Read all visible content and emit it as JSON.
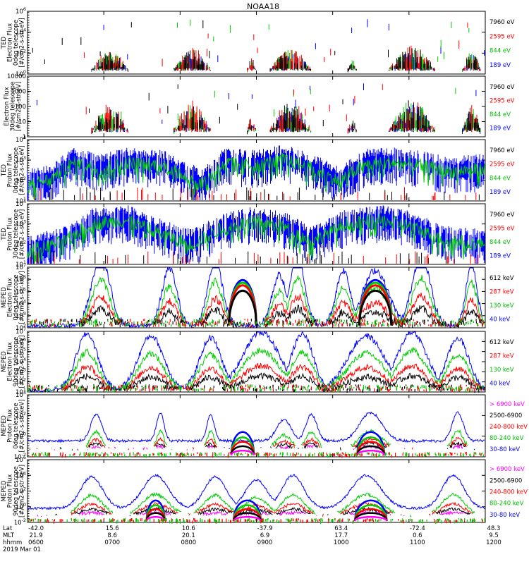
{
  "chart_data": [
    {
      "type": "line",
      "title": "NOAA18",
      "ylabel": [
        "TED",
        "Electron Flux",
        "0deg telescope",
        "[#/cm2-s-str-eV]"
      ],
      "yscale": "log",
      "ylim": [
        1,
        1000000
      ],
      "y_ticks": [
        "10^0",
        "10^2",
        "10^4",
        "10^6"
      ],
      "series": [
        {
          "name": "7960 eV",
          "color": "#000000"
        },
        {
          "name": "2595 eV",
          "color": "#ff0000"
        },
        {
          "name": "844 eV",
          "color": "#00cc00"
        },
        {
          "name": "189 eV",
          "color": "#0000ff"
        }
      ],
      "bursts": [
        [
          0.14,
          0.22
        ],
        [
          0.32,
          0.4
        ],
        [
          0.48,
          0.5
        ],
        [
          0.53,
          0.62
        ],
        [
          0.7,
          0.72
        ],
        [
          0.79,
          0.89
        ],
        [
          0.95,
          0.99
        ]
      ],
      "peak_log": [
        2.2,
        2.4,
        1.6,
        2.4,
        1.4,
        2.6,
        2.2
      ]
    },
    {
      "type": "line",
      "ylabel": [
        "Electron Flux",
        "30deg telescope",
        "[#/cm2-s-str-eV]"
      ],
      "yscale": "log",
      "ylim": [
        1,
        10000
      ],
      "y_ticks": [
        "1",
        "10",
        "100",
        "1000",
        "10000"
      ],
      "series": [
        {
          "name": "7960 eV",
          "color": "#000000"
        },
        {
          "name": "2595 eV",
          "color": "#ff0000"
        },
        {
          "name": "844 eV",
          "color": "#00cc00"
        },
        {
          "name": "189 eV",
          "color": "#0000ff"
        }
      ],
      "bursts": [
        [
          0.14,
          0.22
        ],
        [
          0.32,
          0.4
        ],
        [
          0.48,
          0.5
        ],
        [
          0.53,
          0.62
        ],
        [
          0.7,
          0.72
        ],
        [
          0.79,
          0.89
        ],
        [
          0.95,
          0.99
        ]
      ],
      "peak_log": [
        2.0,
        2.2,
        1.4,
        2.3,
        1.2,
        2.4,
        2.0
      ]
    },
    {
      "type": "line",
      "ylabel": [
        "TED",
        "Proton Flux",
        "0deg telescope",
        "[#/cm2-s-str-eV]"
      ],
      "yscale": "log",
      "ylim": [
        1,
        10000
      ],
      "y_ticks": [
        "10^1",
        "10^2",
        "10^3",
        "10^4"
      ],
      "series": [
        {
          "name": "7960 eV",
          "color": "#000000"
        },
        {
          "name": "2595 eV",
          "color": "#ff0000"
        },
        {
          "name": "844 eV",
          "color": "#00cc00"
        },
        {
          "name": "189 eV",
          "color": "#0000ff"
        }
      ],
      "envelope": [
        [
          0.0,
          1.2
        ],
        [
          0.05,
          1.5
        ],
        [
          0.1,
          2.6
        ],
        [
          0.16,
          2.2
        ],
        [
          0.22,
          2.6
        ],
        [
          0.3,
          2.4
        ],
        [
          0.34,
          1.8
        ],
        [
          0.38,
          1.2
        ],
        [
          0.43,
          2.6
        ],
        [
          0.5,
          2.4
        ],
        [
          0.56,
          2.8
        ],
        [
          0.62,
          2.2
        ],
        [
          0.68,
          1.4
        ],
        [
          0.74,
          2.5
        ],
        [
          0.8,
          2.6
        ],
        [
          0.86,
          2.4
        ],
        [
          0.92,
          2.0
        ],
        [
          1.0,
          2.2
        ]
      ]
    },
    {
      "type": "line",
      "ylabel": [
        "TED",
        "Proton Flux",
        "30deg telescope",
        "[#/cm2-s-str-eV]"
      ],
      "yscale": "log",
      "ylim": [
        1,
        10000
      ],
      "y_ticks": [
        "10^1",
        "10^2",
        "10^3",
        "10^4"
      ],
      "series": [
        {
          "name": "7960 eV",
          "color": "#000000"
        },
        {
          "name": "2595 eV",
          "color": "#ff0000"
        },
        {
          "name": "844 eV",
          "color": "#00cc00"
        },
        {
          "name": "189 eV",
          "color": "#0000ff"
        }
      ],
      "envelope": [
        [
          0.0,
          1.0
        ],
        [
          0.08,
          1.6
        ],
        [
          0.14,
          2.8
        ],
        [
          0.22,
          3.0
        ],
        [
          0.3,
          2.0
        ],
        [
          0.36,
          1.4
        ],
        [
          0.42,
          2.4
        ],
        [
          0.5,
          3.0
        ],
        [
          0.56,
          2.6
        ],
        [
          0.62,
          1.6
        ],
        [
          0.7,
          2.8
        ],
        [
          0.78,
          3.0
        ],
        [
          0.84,
          2.6
        ],
        [
          0.9,
          1.8
        ],
        [
          1.0,
          1.4
        ]
      ]
    },
    {
      "type": "line",
      "ylabel": [
        "MEPED",
        "Electron Flux",
        "0deg telescope",
        "[#/cm2-s-str-keV]"
      ],
      "yscale": "log",
      "ylim": [
        100,
        10000000
      ],
      "y_ticks": [
        "10^2",
        "10^3",
        "10^4",
        "10^5",
        "10^6",
        "10^7"
      ],
      "series": [
        {
          "name": "612 keV",
          "color": "#000000"
        },
        {
          "name": "287 keV",
          "color": "#ff0000"
        },
        {
          "name": "130 keV",
          "color": "#00cc00"
        },
        {
          "name": "40 keV",
          "color": "#0000ff"
        }
      ],
      "humps": [
        [
          0.16,
          0.025,
          5.6
        ],
        [
          0.31,
          0.02,
          4.8
        ],
        [
          0.41,
          0.02,
          5.4
        ],
        [
          0.55,
          0.02,
          4.2
        ],
        [
          0.59,
          0.02,
          5.8
        ],
        [
          0.69,
          0.02,
          4.6
        ],
        [
          0.76,
          0.035,
          4.6
        ],
        [
          0.86,
          0.025,
          5.8
        ],
        [
          0.97,
          0.015,
          5.2
        ]
      ],
      "rad_belt": [
        [
          0.47,
          0.03,
          3.6
        ],
        [
          0.76,
          0.035,
          4.6
        ]
      ]
    },
    {
      "type": "line",
      "ylabel": [
        "MEPED",
        "Electron Flux",
        "90deg telescope",
        "[#/cm2-s-str-keV]"
      ],
      "yscale": "log",
      "ylim": [
        10,
        10000000
      ],
      "y_ticks": [
        "10^1",
        "10^2",
        "10^3",
        "10^4",
        "10^5",
        "10^6",
        "10^7"
      ],
      "series": [
        {
          "name": "612 keV",
          "color": "#000000"
        },
        {
          "name": "287 keV",
          "color": "#ff0000"
        },
        {
          "name": "130 keV",
          "color": "#00cc00"
        },
        {
          "name": "40 keV",
          "color": "#0000ff"
        }
      ],
      "humps": [
        [
          0.13,
          0.03,
          5.6
        ],
        [
          0.27,
          0.035,
          5.4
        ],
        [
          0.4,
          0.03,
          5.2
        ],
        [
          0.51,
          0.05,
          5.8
        ],
        [
          0.6,
          0.03,
          5.6
        ],
        [
          0.74,
          0.05,
          5.4
        ],
        [
          0.84,
          0.04,
          5.8
        ],
        [
          0.94,
          0.03,
          5.2
        ]
      ]
    },
    {
      "type": "line",
      "ylabel": [
        "MEPED",
        "Proton Flux",
        "0deg telescope",
        "[#/cm2-s-str-keV]"
      ],
      "yscale": "log",
      "ylim": [
        0.01,
        100000
      ],
      "y_ticks": [
        "10^-2",
        "10^0",
        "10^2",
        "10^4"
      ],
      "series": [
        {
          "name": "> 6900 keV",
          "color": "#ff00ff"
        },
        {
          "name": "2500-6900",
          "color": "#000000"
        },
        {
          "name": "240-800 keV",
          "color": "#ff0000"
        },
        {
          "name": "80-240 keV",
          "color": "#00cc00"
        },
        {
          "name": "30-80 keV",
          "color": "#0000ff"
        }
      ],
      "humps": [
        [
          0.15,
          0.015,
          3.0
        ],
        [
          0.29,
          0.01,
          3.2
        ],
        [
          0.4,
          0.01,
          3.0
        ],
        [
          0.56,
          0.02,
          2.4
        ],
        [
          0.62,
          0.015,
          3.0
        ],
        [
          0.75,
          0.03,
          3.2
        ],
        [
          0.94,
          0.015,
          3.2
        ]
      ],
      "saa": [
        [
          0.47,
          0.025
        ],
        [
          0.75,
          0.03
        ]
      ]
    },
    {
      "type": "line",
      "ylabel": [
        "MEPED",
        "Proton Flux",
        "90deg telescope",
        "[#/cm2-s-str-keV]"
      ],
      "yscale": "log",
      "ylim": [
        0.01,
        1000000
      ],
      "y_ticks": [
        "10^-2",
        "10^0",
        "10^2",
        "10^4",
        "10^6"
      ],
      "series": [
        {
          "name": "> 6900 keV",
          "color": "#ff00ff"
        },
        {
          "name": "2500-6900",
          "color": "#000000"
        },
        {
          "name": "240-800 keV",
          "color": "#ff0000"
        },
        {
          "name": "80-240 keV",
          "color": "#00cc00"
        },
        {
          "name": "30-80 keV",
          "color": "#0000ff"
        }
      ],
      "humps": [
        [
          0.14,
          0.03,
          4.0
        ],
        [
          0.28,
          0.035,
          4.2
        ],
        [
          0.41,
          0.03,
          4.0
        ],
        [
          0.5,
          0.03,
          3.6
        ],
        [
          0.58,
          0.03,
          4.2
        ],
        [
          0.74,
          0.04,
          4.2
        ],
        [
          0.93,
          0.03,
          4.2
        ]
      ],
      "saa": [
        [
          0.28,
          0.02
        ],
        [
          0.48,
          0.03
        ],
        [
          0.75,
          0.035
        ]
      ]
    }
  ],
  "x_axis": {
    "row_labels": [
      "Lat",
      "MLT",
      "hhmm"
    ],
    "ticks": [
      {
        "lat": "-42.0",
        "mlt": "21.9",
        "hhmm": "0600"
      },
      {
        "lat": "15.6",
        "mlt": "8.6",
        "hhmm": "0700"
      },
      {
        "lat": "10.6",
        "mlt": "20.1",
        "hhmm": "0800"
      },
      {
        "lat": "-37.9",
        "mlt": "6.9",
        "hhmm": "0900"
      },
      {
        "lat": "63.4",
        "mlt": "17.7",
        "hhmm": "1000"
      },
      {
        "lat": "-72.4",
        "mlt": "0.6",
        "hhmm": "1100"
      },
      {
        "lat": "48.3",
        "mlt": "9.5",
        "hhmm": "1200"
      }
    ],
    "date": "2019 Mar 01"
  }
}
